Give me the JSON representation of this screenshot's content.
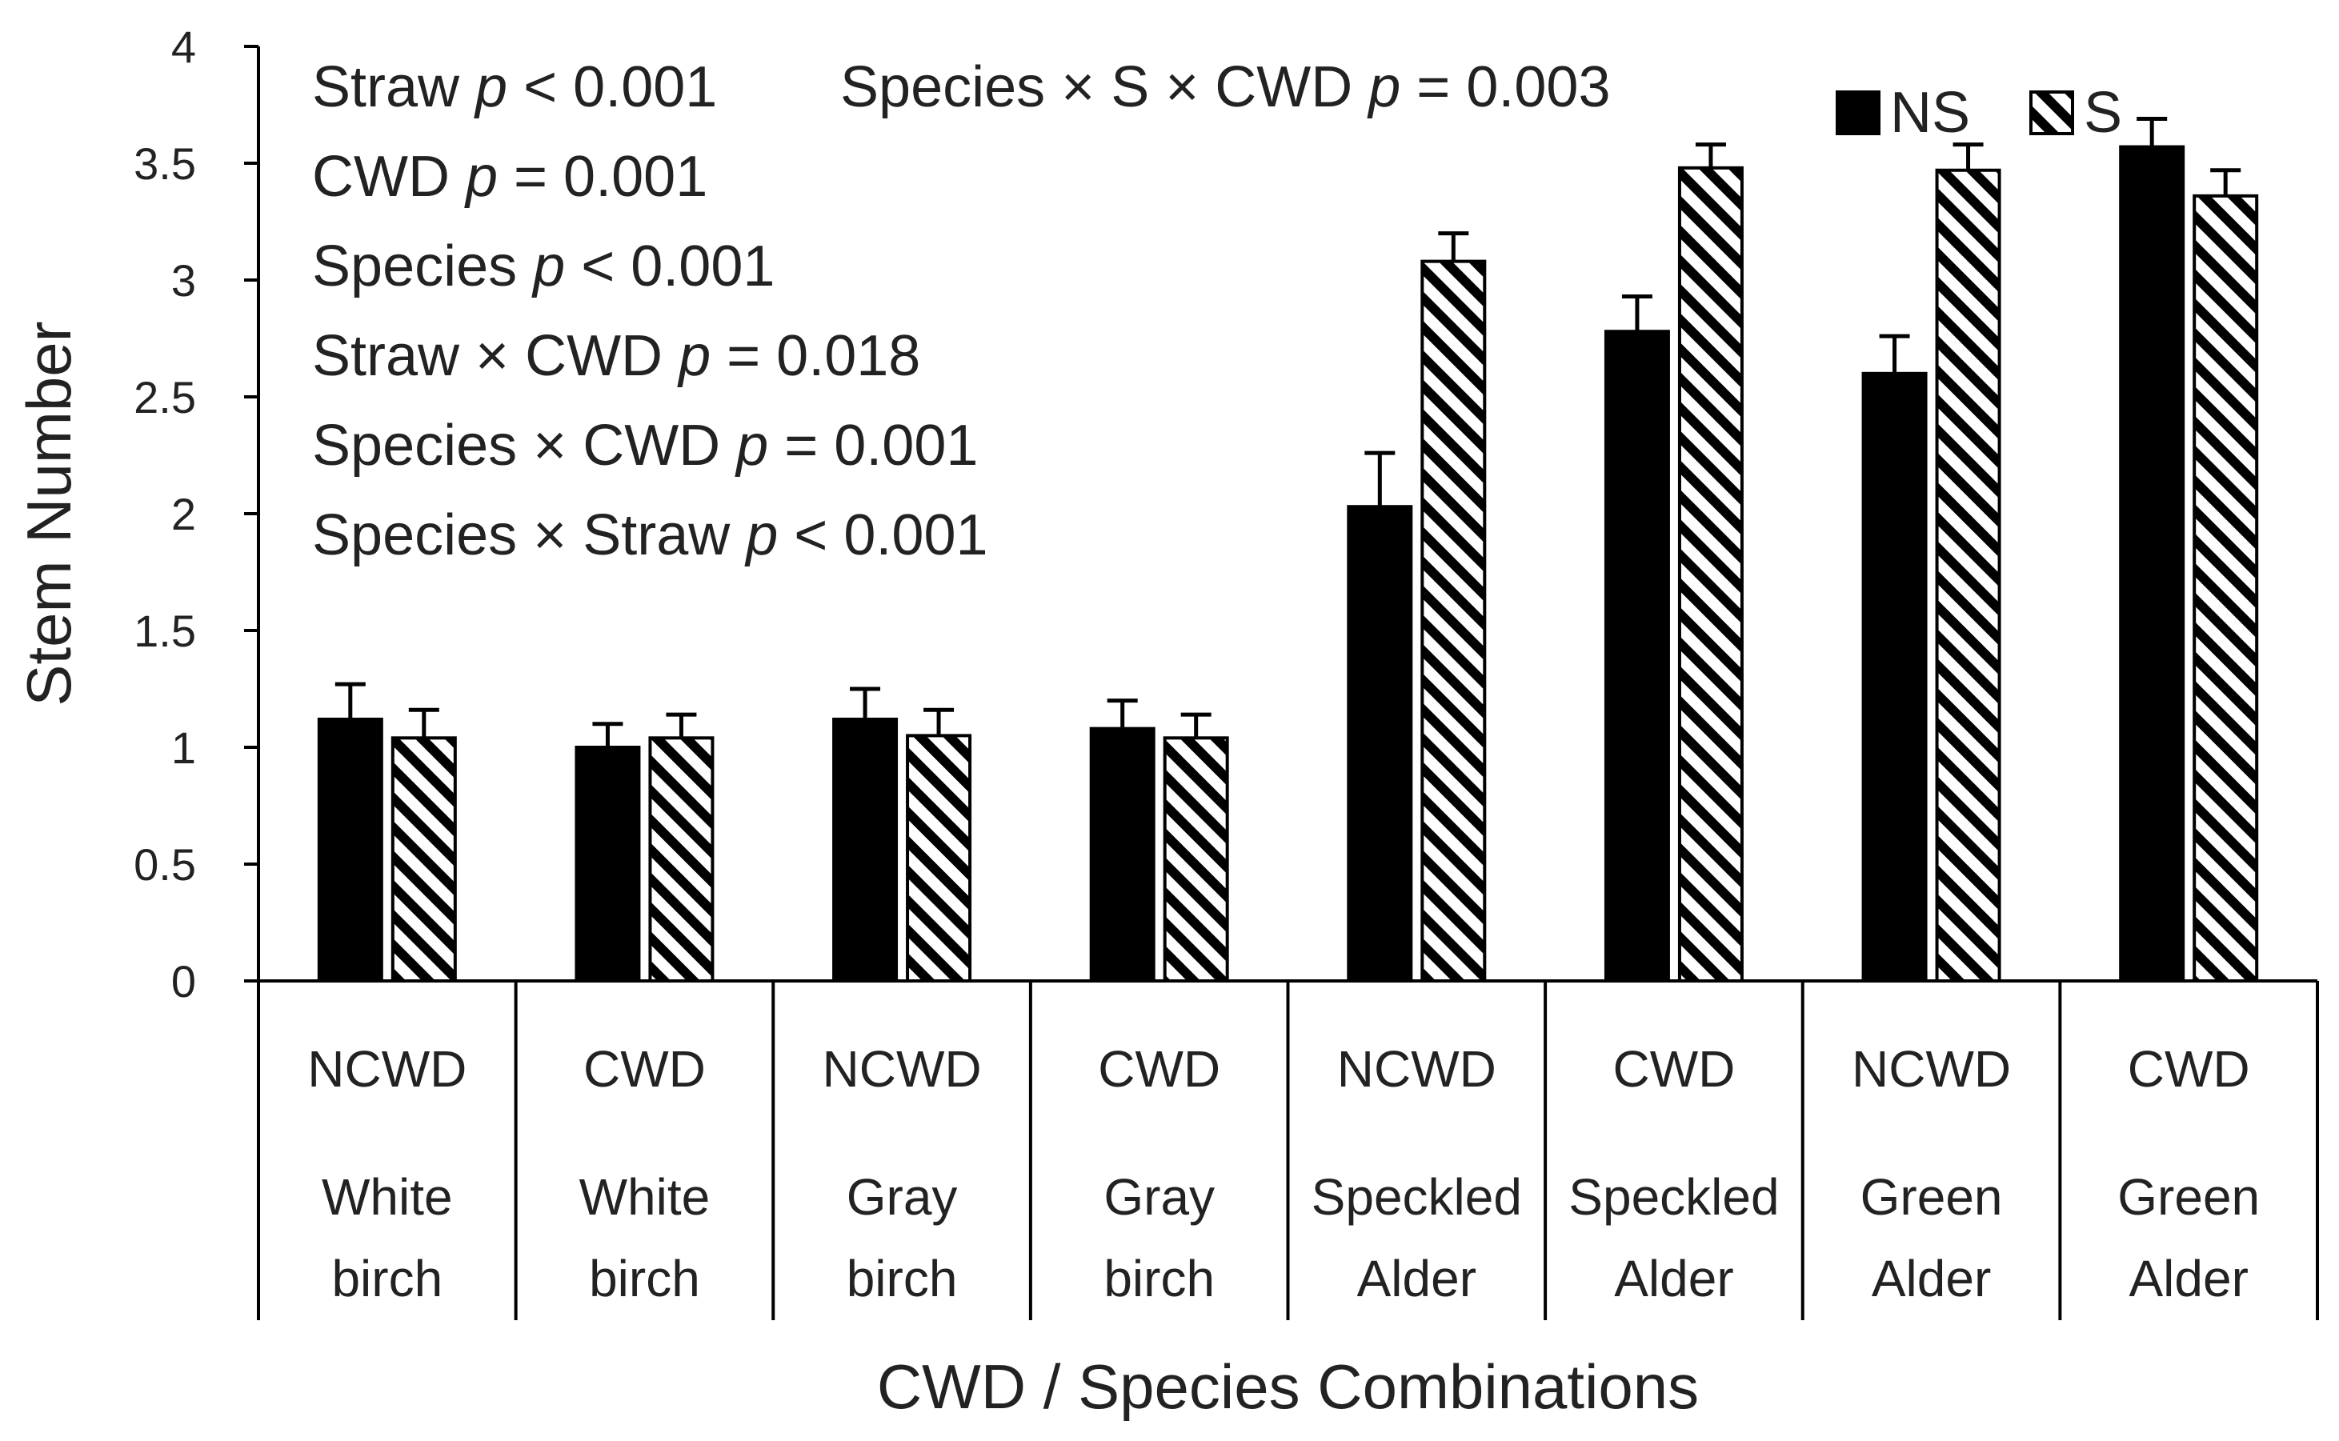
{
  "chart_data": {
    "type": "bar",
    "title": "",
    "ylabel": "Stem Number",
    "xlabel": "CWD / Species Combinations",
    "ylim": [
      0,
      4
    ],
    "yticks": [
      "0",
      "0.5",
      "1",
      "1.5",
      "2",
      "2.5",
      "3",
      "3.5",
      "4"
    ],
    "legend_position": "top-right",
    "categories": [
      {
        "treatment": "NCWD",
        "species_line1": "White",
        "species_line2": "birch"
      },
      {
        "treatment": "CWD",
        "species_line1": "White",
        "species_line2": "birch"
      },
      {
        "treatment": "NCWD",
        "species_line1": "Gray",
        "species_line2": "birch"
      },
      {
        "treatment": "CWD",
        "species_line1": "Gray",
        "species_line2": "birch"
      },
      {
        "treatment": "NCWD",
        "species_line1": "Speckled",
        "species_line2": "Alder"
      },
      {
        "treatment": "CWD",
        "species_line1": "Speckled",
        "species_line2": "Alder"
      },
      {
        "treatment": "NCWD",
        "species_line1": "Green",
        "species_line2": "Alder"
      },
      {
        "treatment": "CWD",
        "species_line1": "Green",
        "species_line2": "Alder"
      }
    ],
    "series": [
      {
        "name": "NS",
        "pattern": "solid",
        "color": "#000000",
        "values": [
          1.12,
          1.0,
          1.12,
          1.08,
          2.03,
          2.78,
          2.6,
          3.57
        ],
        "errors": [
          0.15,
          0.1,
          0.13,
          0.12,
          0.23,
          0.15,
          0.16,
          0.12
        ]
      },
      {
        "name": "S",
        "pattern": "diagonal-hatch",
        "color": "#000000",
        "values": [
          1.04,
          1.04,
          1.05,
          1.04,
          3.08,
          3.48,
          3.47,
          3.36
        ],
        "errors": [
          0.12,
          0.1,
          0.11,
          0.1,
          0.12,
          0.1,
          0.11,
          0.11
        ]
      }
    ],
    "annotations": [
      [
        {
          "t": "Straw "
        },
        {
          "t": "p",
          "i": true
        },
        {
          "t": " < 0.001"
        }
      ],
      [
        {
          "t": "CWD "
        },
        {
          "t": "p",
          "i": true
        },
        {
          "t": " = 0.001"
        }
      ],
      [
        {
          "t": "Species "
        },
        {
          "t": "p",
          "i": true
        },
        {
          "t": " < 0.001"
        }
      ],
      [
        {
          "t": "Straw × CWD "
        },
        {
          "t": "p",
          "i": true
        },
        {
          "t": " = 0.018"
        }
      ],
      [
        {
          "t": "Species × CWD "
        },
        {
          "t": "p",
          "i": true
        },
        {
          "t": " = 0.001"
        }
      ],
      [
        {
          "t": "Species × Straw "
        },
        {
          "t": "p",
          "i": true
        },
        {
          "t": " < 0.001"
        }
      ]
    ],
    "annotation_top_right": [
      {
        "t": "Species × S × CWD "
      },
      {
        "t": "p",
        "i": true
      },
      {
        "t": " = 0.003"
      }
    ]
  }
}
